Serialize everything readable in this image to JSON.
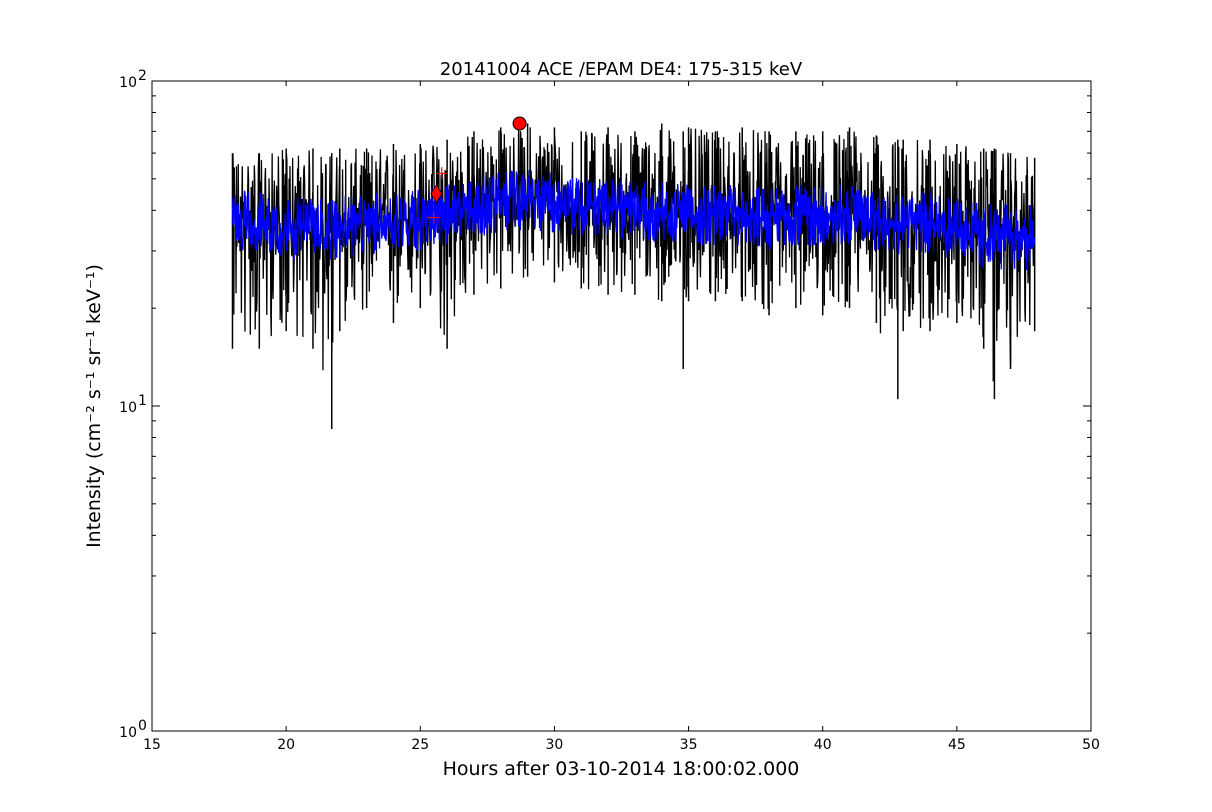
{
  "chart_data": {
    "type": "line",
    "title": "20141004 ACE /EPAM DE4: 175-315 keV",
    "xlabel": "Hours after 03-10-2014 18:00:02.000",
    "ylabel": "Intensity (cm⁻² s⁻¹ sr⁻¹ keV⁻¹)",
    "xlim": [
      15,
      50
    ],
    "ylim": [
      1,
      100
    ],
    "yscale": "log",
    "grid": false,
    "x_ticks": [
      15,
      20,
      25,
      30,
      35,
      40,
      45,
      50
    ],
    "y_ticks": [
      1,
      10,
      100
    ],
    "y_tick_labels": [
      "10",
      "10",
      "10"
    ],
    "y_tick_exponents": [
      "0",
      "1",
      "2"
    ],
    "series": [
      {
        "color": "#000000",
        "style": "raw noisy intensity, 18–48 h",
        "x": [
          18.0,
          19.0,
          20.0,
          21.0,
          21.7,
          22.0,
          23.0,
          24.0,
          25.0,
          26.0,
          27.0,
          28.0,
          29.0,
          30.0,
          31.0,
          32.0,
          33.0,
          34.0,
          34.8,
          35.0,
          36.0,
          37.0,
          38.0,
          39.0,
          40.0,
          41.0,
          42.0,
          42.8,
          43.0,
          44.0,
          45.0,
          46.0,
          46.4,
          47.0,
          47.9
        ],
        "y": [
          38,
          36,
          35,
          34,
          33,
          35,
          36,
          37,
          38,
          39,
          42,
          43,
          44,
          42,
          41,
          41,
          40,
          40,
          38,
          39,
          39,
          39,
          38,
          39,
          38,
          39,
          38,
          36,
          37,
          37,
          35,
          33,
          33,
          33,
          33
        ],
        "min": [
          15,
          15,
          17,
          15,
          8.5,
          17,
          20,
          18,
          20,
          15,
          22,
          23,
          25,
          24,
          23,
          22,
          22,
          21,
          13,
          21,
          21,
          21,
          19,
          20,
          19,
          20,
          18,
          10.5,
          17,
          17,
          18,
          15,
          10.5,
          13,
          17
        ],
        "max": [
          60,
          60,
          62,
          62,
          60,
          62,
          62,
          64,
          64,
          66,
          70,
          72,
          74,
          72,
          70,
          72,
          70,
          74,
          70,
          72,
          70,
          72,
          70,
          70,
          70,
          72,
          68,
          66,
          66,
          66,
          64,
          62,
          62,
          60,
          58
        ]
      },
      {
        "color": "#0000ff",
        "style": "smoothed intensity",
        "x": [
          18.0,
          19.0,
          20.0,
          21.0,
          22.0,
          23.0,
          24.0,
          25.0,
          26.0,
          27.0,
          28.0,
          29.0,
          30.0,
          31.0,
          32.0,
          33.0,
          34.0,
          35.0,
          36.0,
          37.0,
          38.0,
          39.0,
          40.0,
          41.0,
          42.0,
          43.0,
          44.0,
          45.0,
          46.0,
          47.0,
          47.9
        ],
        "y": [
          37,
          36,
          35,
          35,
          35,
          36,
          37,
          38,
          39,
          41,
          43,
          44,
          42,
          41,
          41,
          40,
          40,
          39,
          39,
          39,
          38,
          39,
          39,
          39,
          38,
          37,
          37,
          35,
          33,
          33,
          33
        ],
        "min": [
          30,
          30,
          28,
          28,
          28,
          29,
          30,
          30,
          31,
          33,
          34,
          35,
          34,
          33,
          33,
          32,
          32,
          31,
          31,
          31,
          30,
          31,
          31,
          31,
          30,
          29,
          29,
          28,
          26,
          26,
          26
        ],
        "max": [
          46,
          46,
          44,
          44,
          44,
          45,
          46,
          47,
          48,
          50,
          53,
          54,
          52,
          50,
          50,
          49,
          49,
          48,
          48,
          48,
          47,
          48,
          48,
          48,
          47,
          46,
          46,
          44,
          42,
          42,
          42
        ]
      }
    ],
    "markers": [
      {
        "shape": "circle",
        "color": "#ff0000",
        "x": 28.7,
        "y": 74
      },
      {
        "shape": "diamond",
        "color": "#ff0000",
        "x": 25.6,
        "y": 45
      },
      {
        "shape": "plus",
        "color": "#ff0000",
        "x": 25.8,
        "y": 52
      },
      {
        "shape": "plus",
        "color": "#ff0000",
        "x": 25.5,
        "y": 38
      }
    ]
  }
}
